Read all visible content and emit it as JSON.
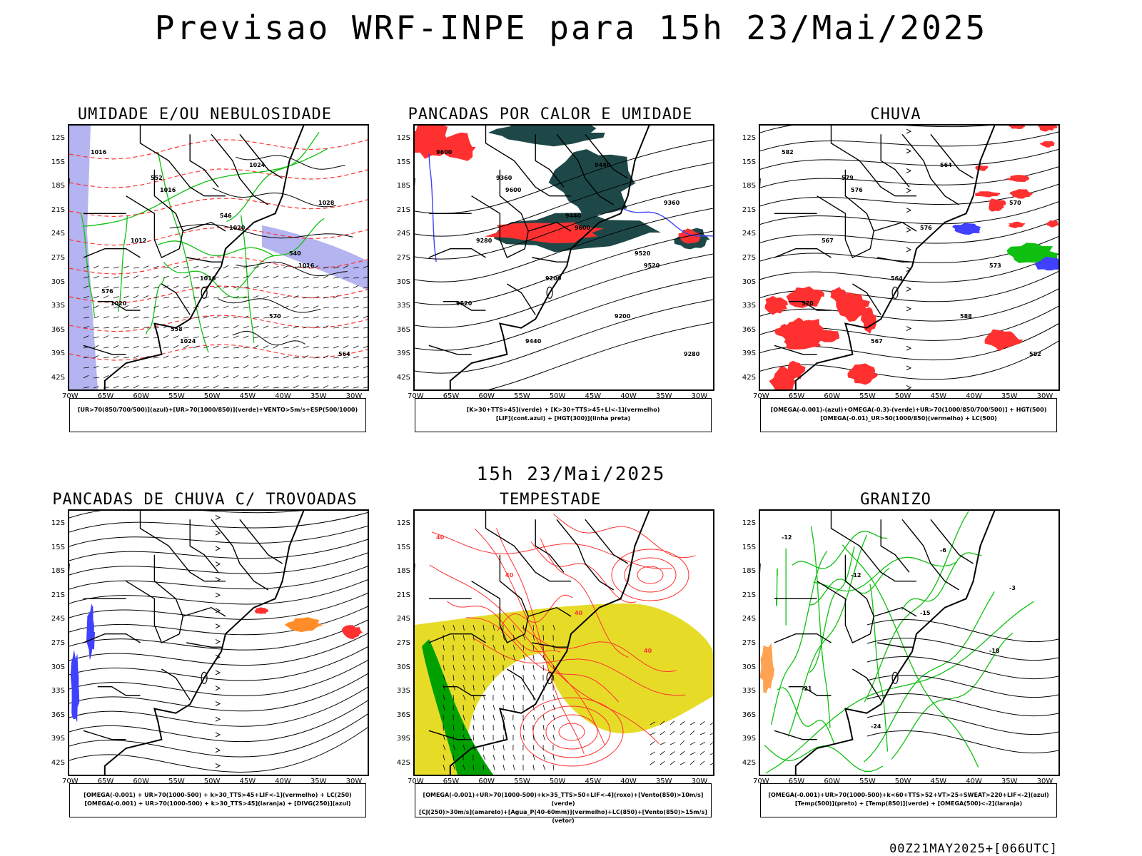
{
  "header": {
    "title": "Previsao WRF-INPE  para 15h 23/Mai/2025"
  },
  "middle_title": "15h 23/Mai/2025",
  "footer": "00Z21MAY2025+[066UTC]",
  "axes": {
    "lat_labels": [
      "12S",
      "15S",
      "18S",
      "21S",
      "24S",
      "27S",
      "30S",
      "33S",
      "36S",
      "39S",
      "42S"
    ],
    "lon_labels": [
      "70W",
      "65W",
      "60W",
      "55W",
      "50W",
      "45W",
      "40W",
      "35W",
      "30W"
    ]
  },
  "colors": {
    "blue": "#4040ff",
    "green": "#10c010",
    "red": "#ff3030",
    "lavender": "#b4b4f0",
    "darkteal": "#1e4848",
    "yellow": "#e6dc28",
    "orange": "#ff8c28",
    "dark_green": "#00a000"
  },
  "panels": [
    {
      "id": "umidade",
      "title": "UMIDADE E/OU NEBULOSIDADE",
      "legend": [
        "[UR>70(850/700/500)](azul)+[UR>70(1000/850)](verde)+VENTO>5m/s+ESP(500/1000)"
      ],
      "contour_labels": [
        "1016",
        "1016",
        "1020",
        "1016",
        "1020",
        "1024",
        "1024",
        "1028",
        "1012",
        "1016",
        "570",
        "564",
        "552",
        "546",
        "540",
        "576",
        "558"
      ]
    },
    {
      "id": "pancadas",
      "title": "PANCADAS POR CALOR E UMIDADE",
      "legend": [
        "[K>30+TTS>45](verde) + [K>30+TTS>45+LI<-1](vermelho)",
        "[LIF](cont.azul) + [HGT(300)](linha preta)"
      ],
      "contour_labels": [
        "9600",
        "9600",
        "9600",
        "9520",
        "9520",
        "9440",
        "9440",
        "9360",
        "9280",
        "9200",
        "9200",
        "9280",
        "9360",
        "9440",
        "9520"
      ]
    },
    {
      "id": "chuva",
      "title": "CHUVA",
      "legend": [
        "[OMEGA(-0.001)-(azul)+OMEGA(-0.3)-(verde)+UR>70(1000/850/700/500)] + HGT(500)",
        "[OMEGA(-0.01)_UR>50(1000/850)(vermelho) + LC(500)"
      ],
      "contour_labels": [
        "582",
        "576",
        "576",
        "573",
        "570",
        "567",
        "564",
        "570",
        "567",
        "564",
        "588",
        "582",
        "579"
      ]
    },
    {
      "id": "trovoadas",
      "title": "PANCADAS DE CHUVA C/ TROVOADAS",
      "legend": [
        "[OMEGA(-0.001) + UR>70(1000-500) + k>30_TTS>45+LIF<-1](vermelho) + LC(250)",
        "[OMEGA(-0.001) + UR>70(1000-500) + k>30_TTS>45](laranja) + [DIVG(250)](azul)"
      ],
      "contour_labels": []
    },
    {
      "id": "tempestade",
      "title": "TEMPESTADE",
      "legend": [
        "[OMEGA(-0.001)+UR>70(1000-500)+k>35_TTS>50+LIF<-4](roxo)+[Vento(850)>10m/s](verde)",
        "[CJ(250)>30m/s](amarelo)+[Agua_P(40-60mm)](vermelho)+LC(850)+[Vento(850)>15m/s](vetor)"
      ],
      "contour_labels": [
        "40",
        "40",
        "40",
        "40"
      ]
    },
    {
      "id": "granizo",
      "title": "GRANIZO",
      "legend": [
        "[OMEGA(-0.001)+UR>70(1000-500)+k<60+TTS>52+VT>25+SWEAT>220+LIF<-2](azul)",
        "[Temp(500)](preto) + [Temp(850)](verde) + [OMEGA(500)<-2](laranja)"
      ],
      "contour_labels": [
        "-12",
        "-12",
        "-15",
        "-18",
        "-21",
        "-24",
        "-6",
        "-3"
      ]
    }
  ]
}
